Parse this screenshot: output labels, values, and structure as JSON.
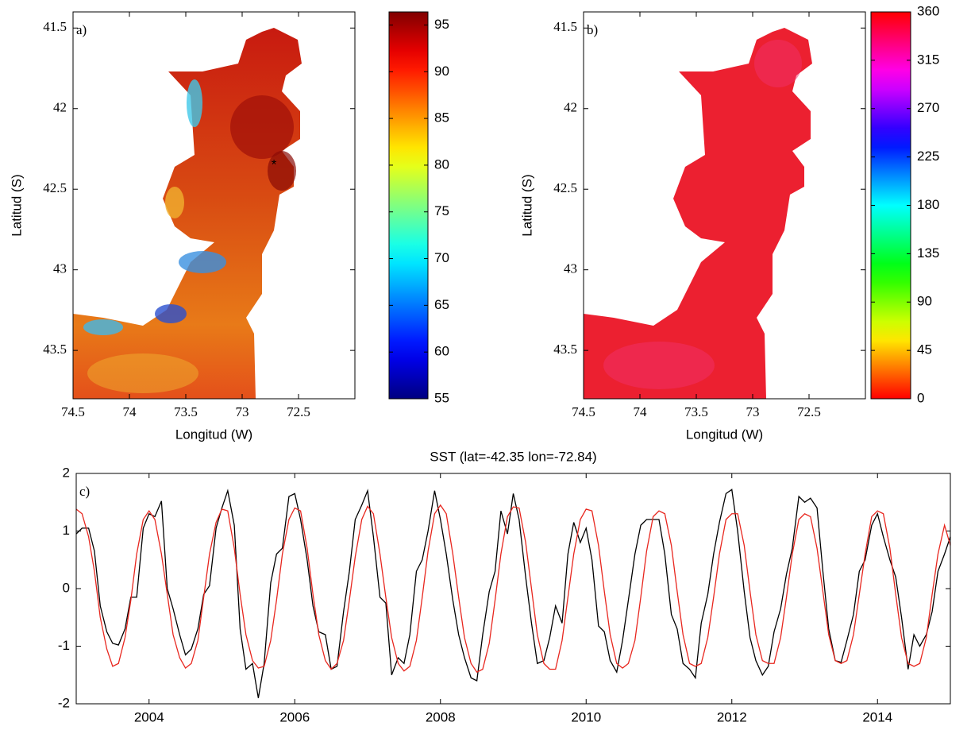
{
  "chart_data": [
    {
      "type": "heatmap",
      "label": "a)",
      "xlabel": "Longitud (W)",
      "ylabel": "Latitud (S)",
      "xlim": [
        74.5,
        72
      ],
      "ylim": [
        43.8,
        41.4
      ],
      "xticks": [
        74.5,
        74,
        73.5,
        73,
        72.5
      ],
      "yticks": [
        41.5,
        42,
        42.5,
        43,
        43.5
      ],
      "colorbar": {
        "clim": [
          55,
          96.4
        ],
        "ticks": [
          55,
          60,
          65,
          70,
          75,
          80,
          85,
          90,
          95
        ],
        "colormap": "jet"
      }
    },
    {
      "type": "heatmap",
      "label": "b)",
      "xlabel": "Longitud (W)",
      "ylabel": "Latitud (S)",
      "xlim": [
        74.5,
        72
      ],
      "ylim": [
        43.8,
        41.4
      ],
      "xticks": [
        74.5,
        74,
        73.5,
        73,
        72.5
      ],
      "yticks": [
        41.5,
        42,
        42.5,
        43,
        43.5
      ],
      "colorbar": {
        "clim": [
          0,
          360
        ],
        "ticks": [
          0,
          45,
          90,
          135,
          180,
          225,
          270,
          315,
          360
        ],
        "colormap": "hsv"
      }
    },
    {
      "type": "line",
      "label": "c)",
      "title": "SST (lat=-42.35 lon=-72.84)",
      "xlim": [
        2003,
        2015
      ],
      "ylim": [
        -2,
        2
      ],
      "xticks": [
        2004,
        2006,
        2008,
        2010,
        2012,
        2014
      ],
      "yticks": [
        -2,
        -1,
        0,
        1,
        2
      ],
      "x": [
        2003,
        2003.08,
        2003.17,
        2003.25,
        2003.33,
        2003.42,
        2003.5,
        2003.58,
        2003.67,
        2003.75,
        2003.83,
        2003.92,
        2004,
        2004.08,
        2004.17,
        2004.25,
        2004.33,
        2004.42,
        2004.5,
        2004.58,
        2004.67,
        2004.75,
        2004.83,
        2004.92,
        2005,
        2005.08,
        2005.17,
        2005.25,
        2005.33,
        2005.42,
        2005.5,
        2005.58,
        2005.67,
        2005.75,
        2005.83,
        2005.92,
        2006,
        2006.08,
        2006.17,
        2006.25,
        2006.33,
        2006.42,
        2006.5,
        2006.58,
        2006.67,
        2006.75,
        2006.83,
        2006.92,
        2007,
        2007.08,
        2007.17,
        2007.25,
        2007.33,
        2007.42,
        2007.5,
        2007.58,
        2007.67,
        2007.75,
        2007.83,
        2007.92,
        2008,
        2008.08,
        2008.17,
        2008.25,
        2008.33,
        2008.42,
        2008.5,
        2008.58,
        2008.67,
        2008.75,
        2008.83,
        2008.92,
        2009,
        2009.08,
        2009.17,
        2009.25,
        2009.33,
        2009.42,
        2009.5,
        2009.58,
        2009.67,
        2009.75,
        2009.83,
        2009.92,
        2010,
        2010.08,
        2010.17,
        2010.25,
        2010.33,
        2010.42,
        2010.5,
        2010.58,
        2010.67,
        2010.75,
        2010.83,
        2010.92,
        2011,
        2011.08,
        2011.17,
        2011.25,
        2011.33,
        2011.42,
        2011.5,
        2011.58,
        2011.67,
        2011.75,
        2011.83,
        2011.92,
        2012,
        2012.08,
        2012.17,
        2012.25,
        2012.33,
        2012.42,
        2012.5,
        2012.58,
        2012.67,
        2012.75,
        2012.83,
        2012.92,
        2013,
        2013.08,
        2013.17,
        2013.25,
        2013.33,
        2013.42,
        2013.5,
        2013.58,
        2013.67,
        2013.75,
        2013.83,
        2013.92,
        2014,
        2014.08,
        2014.17,
        2014.25,
        2014.33,
        2014.42,
        2014.5,
        2014.58,
        2014.67,
        2014.75,
        2014.83,
        2014.92,
        2015
      ],
      "series": [
        {
          "color": "#000000",
          "values": [
            0.95,
            1.05,
            1.05,
            0.65,
            -0.3,
            -0.75,
            -0.95,
            -0.98,
            -0.7,
            -0.15,
            -0.15,
            1.05,
            1.3,
            1.25,
            1.52,
            0.0,
            -0.35,
            -0.8,
            -1.15,
            -1.05,
            -0.7,
            -0.1,
            0.05,
            1.05,
            1.4,
            1.7,
            1.1,
            -0.7,
            -1.4,
            -1.3,
            -1.9,
            -1.3,
            0.1,
            0.6,
            0.7,
            1.6,
            1.65,
            1.2,
            0.5,
            -0.3,
            -0.75,
            -0.8,
            -1.4,
            -1.35,
            -0.4,
            0.3,
            1.2,
            1.45,
            1.7,
            0.9,
            -0.15,
            -0.25,
            -1.5,
            -1.2,
            -1.3,
            -0.8,
            0.3,
            0.5,
            1.0,
            1.7,
            1.2,
            0.6,
            -0.2,
            -0.8,
            -1.2,
            -1.55,
            -1.6,
            -0.8,
            -0.05,
            0.3,
            1.35,
            0.95,
            1.65,
            1.2,
            0.2,
            -0.6,
            -1.3,
            -1.25,
            -0.85,
            -0.3,
            -0.6,
            0.6,
            1.15,
            0.8,
            1.05,
            0.5,
            -0.65,
            -0.75,
            -1.25,
            -1.45,
            -0.9,
            -0.2,
            0.6,
            1.1,
            1.2,
            1.2,
            1.2,
            0.6,
            -0.45,
            -0.7,
            -1.3,
            -1.4,
            -1.55,
            -0.6,
            -0.1,
            0.6,
            1.15,
            1.65,
            1.72,
            1.0,
            -0.05,
            -0.85,
            -1.25,
            -1.5,
            -1.35,
            -0.75,
            -0.35,
            0.25,
            0.7,
            1.6,
            1.5,
            1.57,
            1.4,
            0.3,
            -0.7,
            -1.25,
            -1.28,
            -0.9,
            -0.45,
            0.3,
            0.5,
            1.1,
            1.3,
            0.9,
            0.5,
            0.2,
            -0.5,
            -1.4,
            -0.8,
            -1.0,
            -0.8,
            -0.4,
            0.3,
            0.6,
            0.9
          ]
        },
        {
          "color": "#e8271f",
          "values": [
            1.38,
            1.3,
            0.9,
            0.3,
            -0.5,
            -1.05,
            -1.35,
            -1.3,
            -0.85,
            -0.2,
            0.6,
            1.2,
            1.35,
            1.2,
            0.6,
            -0.1,
            -0.8,
            -1.2,
            -1.38,
            -1.3,
            -0.9,
            -0.15,
            0.6,
            1.15,
            1.38,
            1.35,
            0.7,
            -0.1,
            -0.8,
            -1.25,
            -1.38,
            -1.35,
            -0.9,
            -0.2,
            0.6,
            1.2,
            1.4,
            1.35,
            0.7,
            -0.1,
            -0.8,
            -1.25,
            -1.4,
            -1.3,
            -0.9,
            -0.2,
            0.55,
            1.2,
            1.43,
            1.3,
            0.6,
            -0.15,
            -0.85,
            -1.3,
            -1.43,
            -1.35,
            -0.9,
            -0.15,
            0.65,
            1.3,
            1.45,
            1.3,
            0.6,
            -0.15,
            -0.85,
            -1.3,
            -1.45,
            -1.4,
            -0.95,
            -0.2,
            0.6,
            1.25,
            1.42,
            1.4,
            0.8,
            0.0,
            -0.8,
            -1.3,
            -1.4,
            -1.4,
            -0.9,
            -0.15,
            0.6,
            1.2,
            1.38,
            1.35,
            0.75,
            -0.05,
            -0.8,
            -1.3,
            -1.38,
            -1.3,
            -0.9,
            -0.15,
            0.65,
            1.25,
            1.35,
            1.3,
            0.75,
            -0.05,
            -0.8,
            -1.3,
            -1.35,
            -1.3,
            -0.85,
            -0.15,
            0.6,
            1.2,
            1.3,
            1.3,
            0.75,
            -0.05,
            -0.8,
            -1.25,
            -1.3,
            -1.3,
            -0.85,
            -0.15,
            0.6,
            1.2,
            1.3,
            1.25,
            0.7,
            -0.05,
            -0.8,
            -1.25,
            -1.3,
            -1.25,
            -0.8,
            -0.1,
            0.6,
            1.25,
            1.35,
            1.3,
            0.7,
            -0.1,
            -0.85,
            -1.3,
            -1.35,
            -1.3,
            -0.85,
            -0.1,
            0.6,
            1.1,
            0.75
          ]
        }
      ]
    }
  ]
}
